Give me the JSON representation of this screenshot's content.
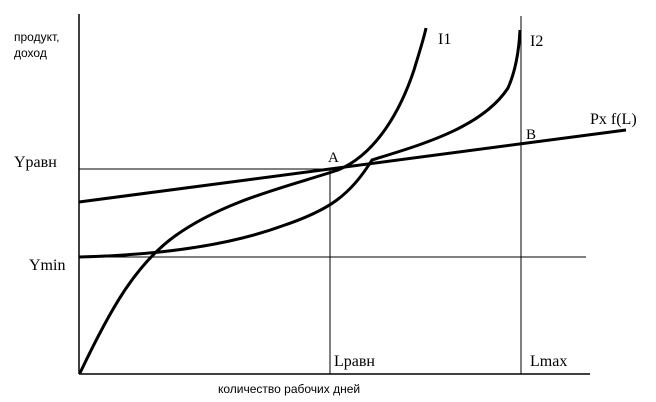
{
  "diagram": {
    "y_axis_label_line1": "продукт,",
    "y_axis_label_line2": "доход",
    "x_axis_label": "количество рабочих дней",
    "y_level_high": "Yравн",
    "y_level_low": "Ymin",
    "x_level_equilibrium": "Lравн",
    "x_level_max": "Lmax",
    "curve_i1": "I1",
    "curve_i2": "I2",
    "production_line": "Px f(L)",
    "point_a": "A",
    "point_b": "B"
  }
}
